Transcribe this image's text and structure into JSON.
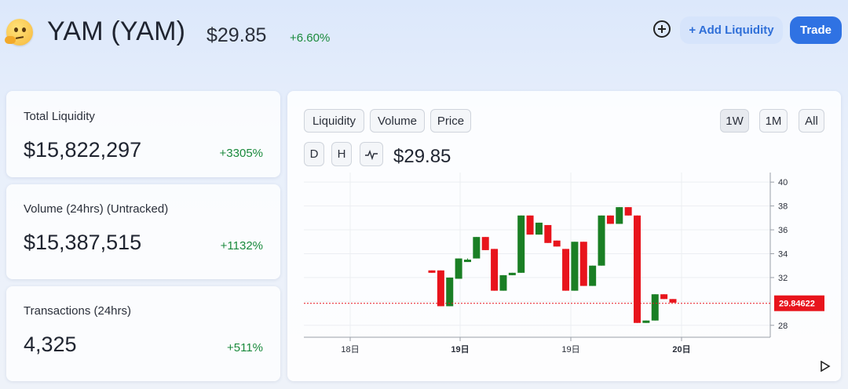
{
  "header": {
    "token_name": "YAM (YAM)",
    "price": "$29.85",
    "change": "+6.60%",
    "add_liquidity_label": "+ Add Liquidity",
    "trade_label": "Trade",
    "icons": {
      "token": "thinking-face-emoji-icon",
      "watchlist": "plus-circle-icon"
    }
  },
  "stats": [
    {
      "label": "Total Liquidity",
      "value": "$15,822,297",
      "change": "+3305%"
    },
    {
      "label": "Volume (24hrs) (Untracked)",
      "value": "$15,387,515",
      "change": "+1132%"
    },
    {
      "label": "Transactions (24hrs)",
      "value": "4,325",
      "change": "+511%"
    }
  ],
  "chart_panel": {
    "tabs": [
      "Liquidity",
      "Volume",
      "Price"
    ],
    "selected_tab": "Price",
    "ranges": [
      "1W",
      "1M",
      "All"
    ],
    "selected_range": "1W",
    "intervals": [
      "D",
      "H"
    ],
    "current_price": "$29.85",
    "colors": {
      "up": "#1a7f24",
      "down": "#e8141c",
      "price_tag": "#e8141c"
    }
  },
  "chart_data": {
    "type": "candlestick",
    "y_ticks": [
      "40",
      "38",
      "36",
      "34",
      "32",
      "28"
    ],
    "ylim": [
      27,
      40.8
    ],
    "x_ticks": [
      "18日",
      "19日",
      "19日",
      "20日"
    ],
    "x_ticks_bold": [
      false,
      true,
      false,
      true
    ],
    "current_value": "29.84622",
    "current_value_num": 29.84622,
    "grid": true,
    "candles": [
      {
        "o": 32.6,
        "h": 32.6,
        "c": 32.4,
        "l": 32.4
      },
      {
        "o": 32.6,
        "h": 32.6,
        "c": 29.6,
        "l": 29.6
      },
      {
        "o": 29.6,
        "h": 32.0,
        "c": 32.0,
        "l": 29.6
      },
      {
        "o": 31.9,
        "h": 33.6,
        "c": 33.6,
        "l": 31.9
      },
      {
        "o": 33.5,
        "h": 33.6,
        "c": 33.5,
        "l": 33.5
      },
      {
        "o": 33.6,
        "h": 35.4,
        "c": 35.4,
        "l": 33.6
      },
      {
        "o": 35.4,
        "h": 35.4,
        "c": 34.3,
        "l": 34.3
      },
      {
        "o": 34.4,
        "h": 34.4,
        "c": 30.9,
        "l": 30.9
      },
      {
        "o": 30.9,
        "h": 32.2,
        "c": 32.2,
        "l": 30.9
      },
      {
        "o": 32.2,
        "h": 32.4,
        "c": 32.4,
        "l": 32.2
      },
      {
        "o": 32.4,
        "h": 37.2,
        "c": 37.2,
        "l": 32.4
      },
      {
        "o": 37.2,
        "h": 37.2,
        "c": 35.6,
        "l": 35.6
      },
      {
        "o": 35.6,
        "h": 36.6,
        "c": 36.6,
        "l": 35.6
      },
      {
        "o": 36.4,
        "h": 36.4,
        "c": 34.9,
        "l": 34.9
      },
      {
        "o": 35.1,
        "h": 35.1,
        "c": 34.6,
        "l": 34.6
      },
      {
        "o": 34.4,
        "h": 34.4,
        "c": 30.9,
        "l": 30.9
      },
      {
        "o": 30.9,
        "h": 35.0,
        "c": 35.0,
        "l": 30.9
      },
      {
        "o": 35.0,
        "h": 35.0,
        "c": 31.3,
        "l": 31.3
      },
      {
        "o": 31.3,
        "h": 33.0,
        "c": 33.0,
        "l": 31.3
      },
      {
        "o": 33.0,
        "h": 37.2,
        "c": 37.2,
        "l": 33.0
      },
      {
        "o": 37.2,
        "h": 37.2,
        "c": 36.5,
        "l": 36.5
      },
      {
        "o": 36.5,
        "h": 37.9,
        "c": 37.9,
        "l": 36.5
      },
      {
        "o": 37.9,
        "h": 37.9,
        "c": 37.2,
        "l": 37.2
      },
      {
        "o": 37.2,
        "h": 37.2,
        "c": 28.2,
        "l": 28.2
      },
      {
        "o": 28.2,
        "h": 28.4,
        "c": 28.4,
        "l": 28.2
      },
      {
        "o": 28.4,
        "h": 30.6,
        "c": 30.6,
        "l": 28.4
      },
      {
        "o": 30.6,
        "h": 30.6,
        "c": 30.2,
        "l": 30.2
      },
      {
        "o": 30.2,
        "h": 30.2,
        "c": 29.9,
        "l": 29.9
      }
    ]
  }
}
